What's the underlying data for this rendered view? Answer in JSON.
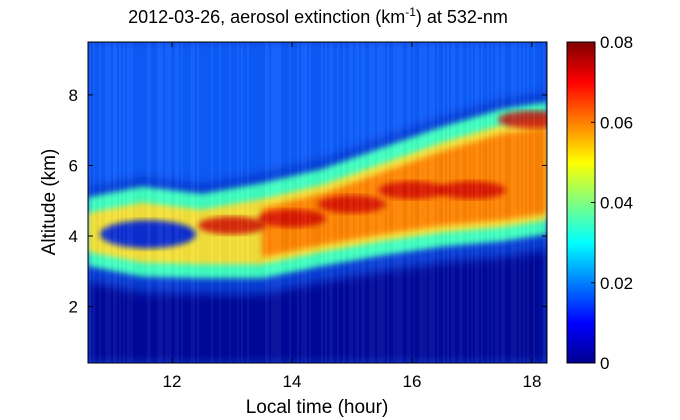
{
  "chart_data": {
    "type": "heatmap",
    "title": {
      "date": "2012-03-26",
      "text_before_sup": ", aerosol extinction (km",
      "sup": "-1",
      "text_after_sup": ") at 532-nm"
    },
    "xlabel": "Local time (hour)",
    "ylabel": "Altitude (km)",
    "xlim": [
      10.6,
      18.25
    ],
    "ylim": [
      0.4,
      9.5
    ],
    "xticks": [
      12,
      14,
      16,
      18
    ],
    "yticks": [
      2,
      4,
      6,
      8
    ],
    "colorbar": {
      "range": [
        0,
        0.08
      ],
      "ticks": [
        0,
        0.02,
        0.04,
        0.06,
        0.08
      ],
      "tick_labels": [
        "0",
        "0.02",
        "0.04",
        "0.06",
        "0.08"
      ],
      "colormap": "jet"
    },
    "features": [
      {
        "name": "aerosol layer bottom",
        "x": [
          10.6,
          11.5,
          12.5,
          13.5,
          14.5,
          15.5,
          16.5,
          17.5,
          18.25
        ],
        "y": [
          3.3,
          3.0,
          2.95,
          2.95,
          3.3,
          3.6,
          3.85,
          4.0,
          4.2
        ]
      },
      {
        "name": "aerosol layer top",
        "x": [
          10.6,
          11.5,
          12.5,
          13.5,
          14.5,
          15.5,
          16.5,
          17.5,
          18.25
        ],
        "y": [
          5.0,
          5.3,
          5.1,
          5.4,
          5.8,
          6.4,
          7.0,
          7.5,
          7.7
        ]
      },
      {
        "name": "max extinction region",
        "x": [
          13.0,
          14.0,
          15.0,
          16.0,
          17.0,
          18.0
        ],
        "y": [
          4.3,
          4.5,
          4.9,
          5.3,
          5.3,
          7.3
        ],
        "value": 0.07
      }
    ],
    "colors": {
      "background_low": "#00008f",
      "background_mid": "#1060ff",
      "layer_edge": "#40ffc0",
      "layer_core": "#ff8000",
      "layer_peak": "#d00000"
    }
  }
}
